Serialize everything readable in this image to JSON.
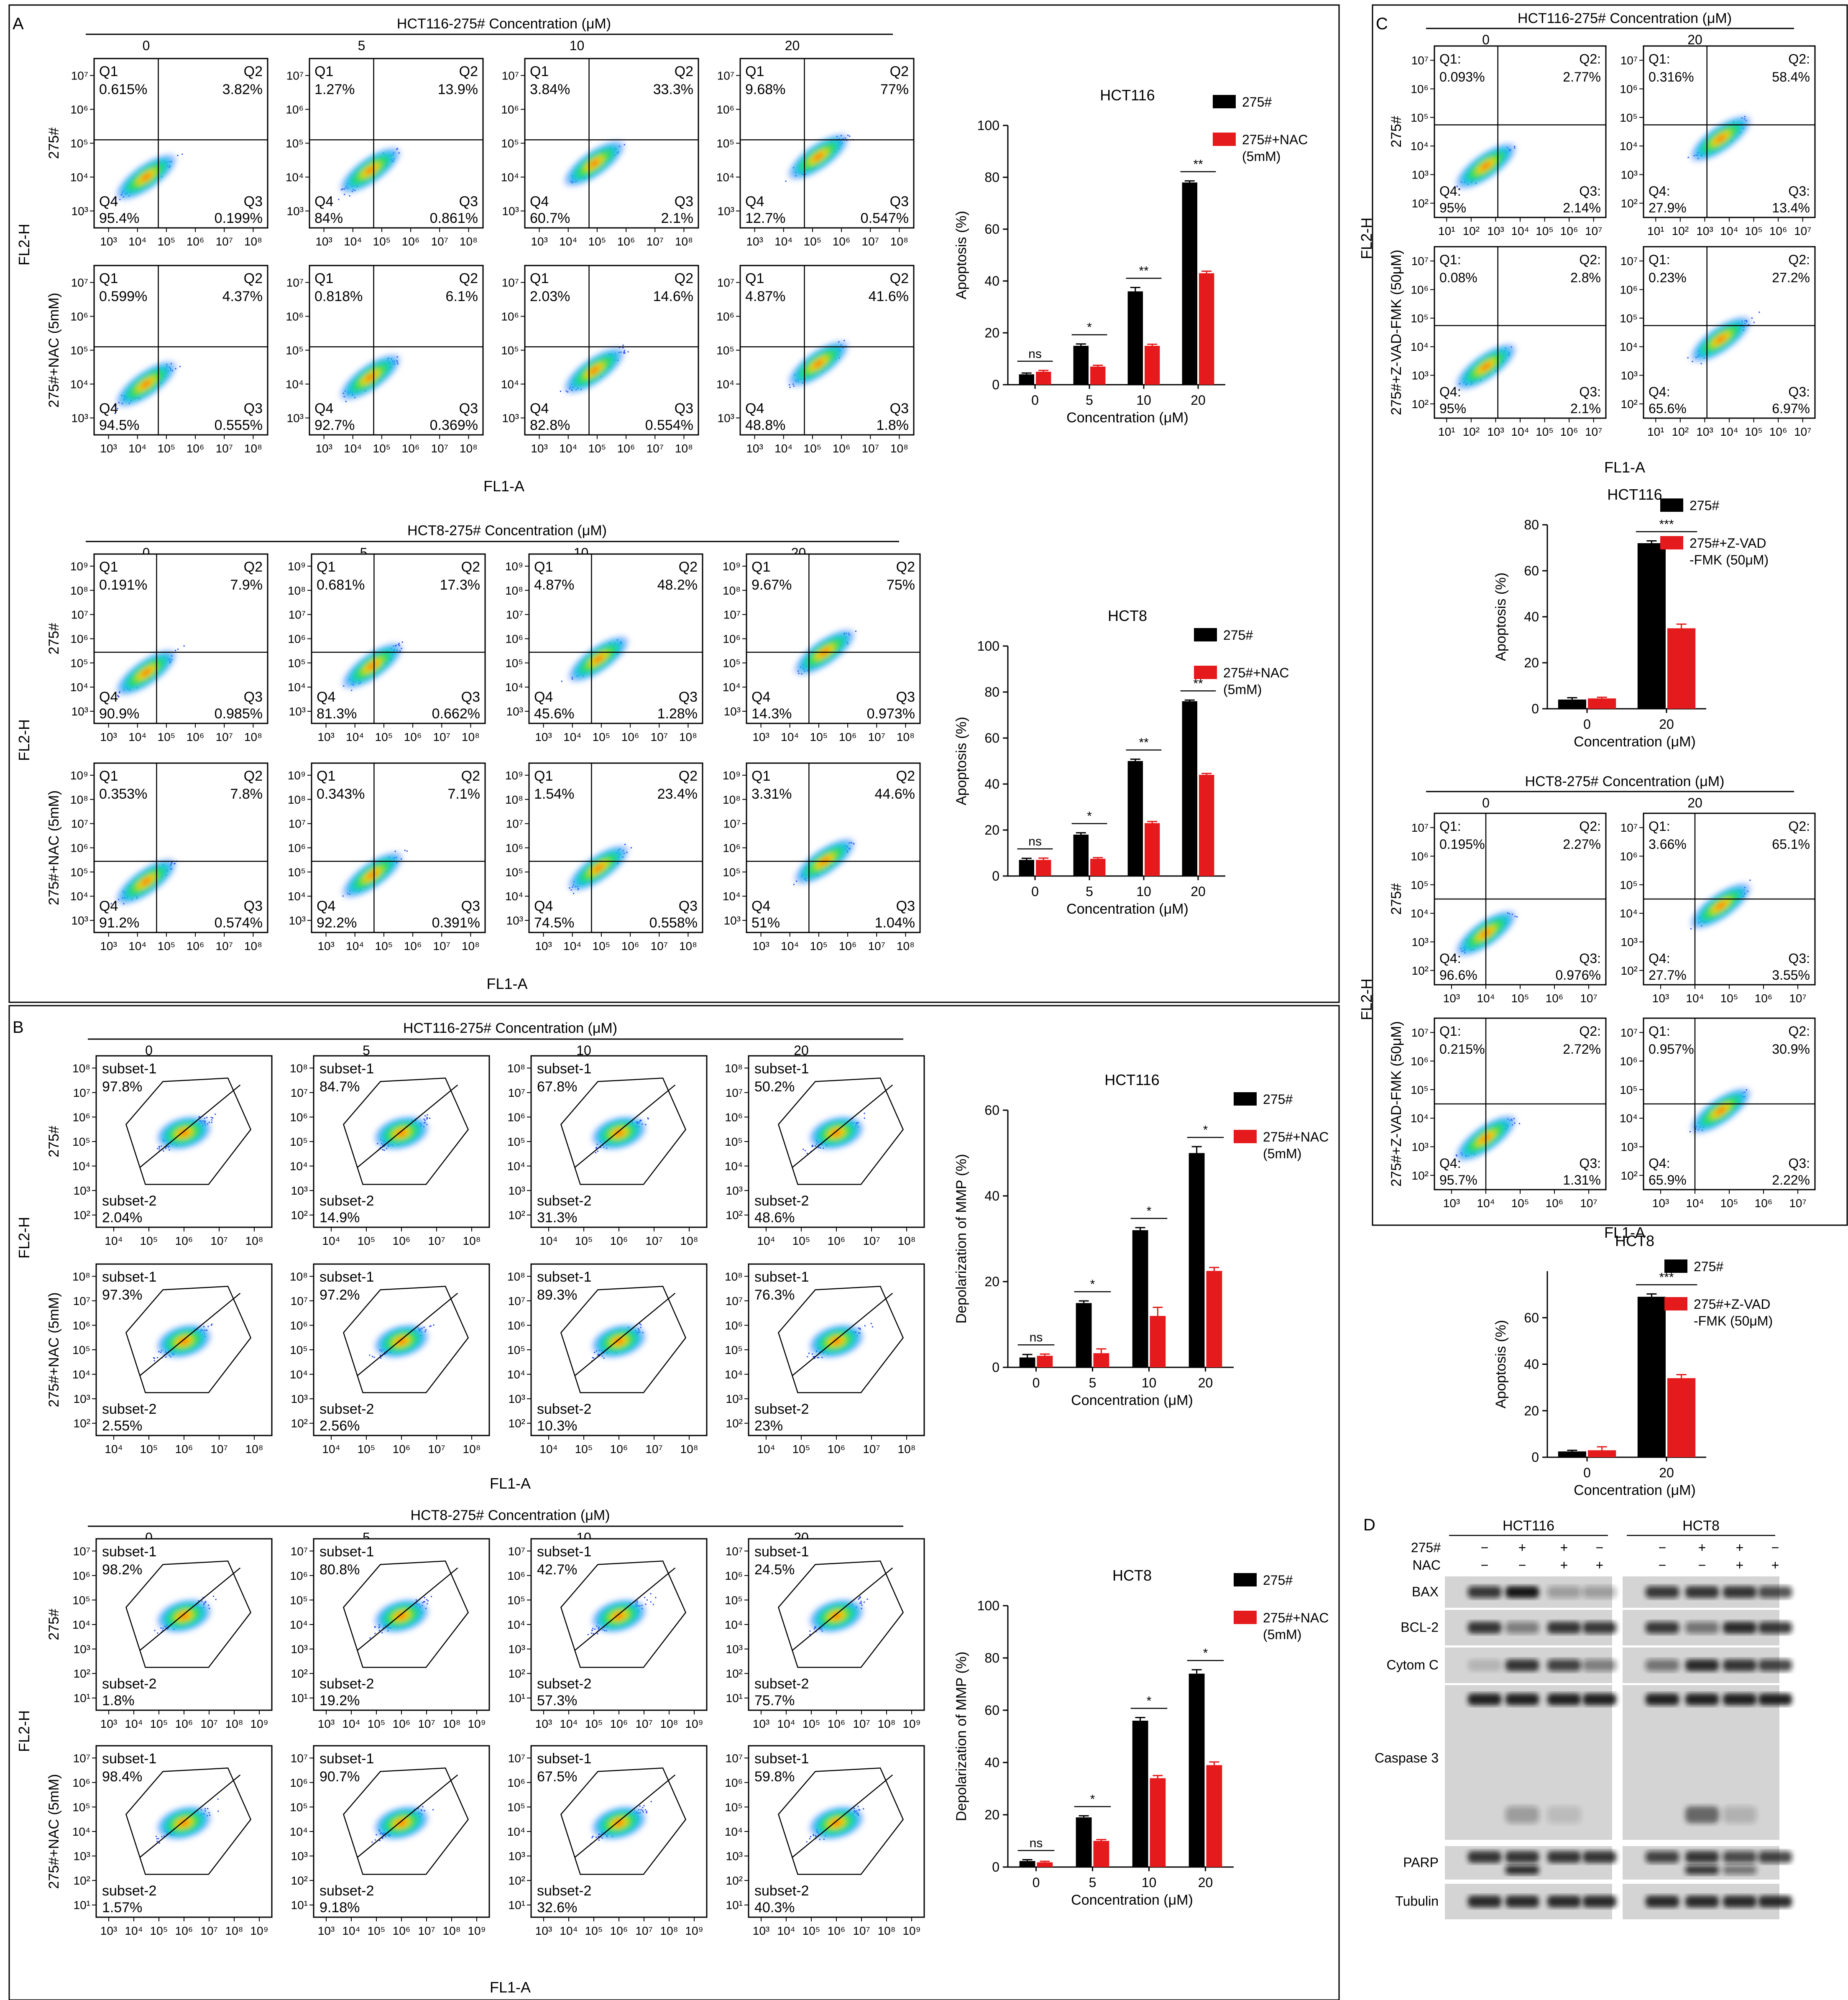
{
  "panel_letters": [
    "A",
    "B",
    "C",
    "D"
  ],
  "flow_cytometry": {
    "apoptosis_quadrant_labels": [
      "Q1",
      "Q2",
      "Q3",
      "Q4"
    ],
    "ros_quadrant_labels": [
      "Q1:",
      "Q2:",
      "Q3:",
      "Q4:"
    ],
    "mmp_gate_labels": [
      "subset-1",
      "subset-2"
    ],
    "x_label": "FL1-A",
    "y_label": "FL2-H",
    "row_labels_nac": [
      "275#",
      "275#+NAC (5mM)"
    ],
    "row_labels_zvad": [
      "275#",
      "275#+Z-VAD-FMK (50μM)"
    ],
    "grids": [
      {
        "title": "HCT116-275# Concentration (μM)",
        "columns": [
          "0",
          "5",
          "10",
          "20"
        ],
        "x_ticks": [
          "10³",
          "10⁴",
          "10⁵",
          "10⁶",
          "10⁷",
          "10⁸"
        ],
        "y_ticks": [
          "10³",
          "10⁴",
          "10⁵",
          "10⁶",
          "10⁷"
        ],
        "rows": [
          [
            [
              "0.615%",
              "3.82%",
              "0.199%",
              "95.4%"
            ],
            [
              "1.27%",
              "13.9%",
              "0.861%",
              "84%"
            ],
            [
              "3.84%",
              "33.3%",
              "2.1%",
              "60.7%"
            ],
            [
              "9.68%",
              "77%",
              "0.547%",
              "12.7%"
            ]
          ],
          [
            [
              "0.599%",
              "4.37%",
              "0.555%",
              "94.5%"
            ],
            [
              "0.818%",
              "6.1%",
              "0.369%",
              "92.7%"
            ],
            [
              "2.03%",
              "14.6%",
              "0.554%",
              "82.8%"
            ],
            [
              "4.87%",
              "41.6%",
              "1.8%",
              "48.8%"
            ]
          ]
        ]
      },
      {
        "title": "HCT8-275# Concentration (μM)",
        "columns": [
          "0",
          "5",
          "10",
          "20"
        ],
        "x_ticks": [
          "10³",
          "10⁴",
          "10⁵",
          "10⁶",
          "10⁷",
          "10⁸"
        ],
        "y_ticks": [
          "10³",
          "10⁴",
          "10⁵",
          "10⁶",
          "10⁷",
          "10⁸",
          "10⁹"
        ],
        "rows": [
          [
            [
              "0.191%",
              "7.9%",
              "0.985%",
              "90.9%"
            ],
            [
              "0.681%",
              "17.3%",
              "0.662%",
              "81.3%"
            ],
            [
              "4.87%",
              "48.2%",
              "1.28%",
              "45.6%"
            ],
            [
              "9.67%",
              "75%",
              "0.973%",
              "14.3%"
            ]
          ],
          [
            [
              "0.353%",
              "7.8%",
              "0.574%",
              "91.2%"
            ],
            [
              "0.343%",
              "7.1%",
              "0.391%",
              "92.2%"
            ],
            [
              "1.54%",
              "23.4%",
              "0.558%",
              "74.5%"
            ],
            [
              "3.31%",
              "44.6%",
              "1.04%",
              "51%"
            ]
          ]
        ]
      },
      {
        "title": "HCT116-275# Concentration (μM)",
        "columns": [
          "0",
          "5",
          "10",
          "20"
        ],
        "x_ticks": [
          "10⁴",
          "10⁵",
          "10⁶",
          "10⁷",
          "10⁸"
        ],
        "y_ticks": [
          "10²",
          "10³",
          "10⁴",
          "10⁵",
          "10⁶",
          "10⁷",
          "10⁸"
        ],
        "rows": [
          [
            [
              "97.8%",
              "2.04%"
            ],
            [
              "84.7%",
              "14.9%"
            ],
            [
              "67.8%",
              "31.3%"
            ],
            [
              "50.2%",
              "48.6%"
            ]
          ],
          [
            [
              "97.3%",
              "2.55%"
            ],
            [
              "97.2%",
              "2.56%"
            ],
            [
              "89.3%",
              "10.3%"
            ],
            [
              "76.3%",
              "23%"
            ]
          ]
        ]
      },
      {
        "title": "HCT8-275# Concentration (μM)",
        "columns": [
          "0",
          "5",
          "10",
          "20"
        ],
        "x_ticks": [
          "10³",
          "10⁴",
          "10⁵",
          "10⁶",
          "10⁷",
          "10⁸",
          "10⁹"
        ],
        "y_ticks": [
          "10¹",
          "10²",
          "10³",
          "10⁴",
          "10⁵",
          "10⁶",
          "10⁷"
        ],
        "rows": [
          [
            [
              "98.2%",
              "1.8%"
            ],
            [
              "80.8%",
              "19.2%"
            ],
            [
              "42.7%",
              "57.3%"
            ],
            [
              "24.5%",
              "75.7%"
            ]
          ],
          [
            [
              "98.4%",
              "1.57%"
            ],
            [
              "90.7%",
              "9.18%"
            ],
            [
              "67.5%",
              "32.6%"
            ],
            [
              "59.8%",
              "40.3%"
            ]
          ]
        ]
      },
      {
        "title": "HCT116-275# Concentration (μM)",
        "columns": [
          "0",
          "20"
        ],
        "x_ticks": [
          "10¹",
          "10²",
          "10³",
          "10⁴",
          "10⁵",
          "10⁶",
          "10⁷"
        ],
        "y_ticks": [
          "10²",
          "10³",
          "10⁴",
          "10⁵",
          "10⁶",
          "10⁷"
        ],
        "rows": [
          [
            [
              "0.093%",
              "2.77%",
              "2.14%",
              "95%"
            ],
            [
              "0.316%",
              "58.4%",
              "13.4%",
              "27.9%"
            ]
          ],
          [
            [
              "0.08%",
              "2.8%",
              "2.1%",
              "95%"
            ],
            [
              "0.23%",
              "27.2%",
              "6.97%",
              "65.6%"
            ]
          ]
        ]
      },
      {
        "title": "HCT8-275# Concentration (μM)",
        "columns": [
          "0",
          "20"
        ],
        "x_ticks": [
          "10³",
          "10⁴",
          "10⁵",
          "10⁶",
          "10⁷"
        ],
        "y_ticks": [
          "10²",
          "10³",
          "10⁴",
          "10⁵",
          "10⁶",
          "10⁷"
        ],
        "rows": [
          [
            [
              "0.195%",
              "2.27%",
              "0.976%",
              "96.6%"
            ],
            [
              "3.66%",
              "65.1%",
              "3.55%",
              "27.7%"
            ]
          ],
          [
            [
              "0.215%",
              "2.72%",
              "1.31%",
              "95.7%"
            ],
            [
              "0.957%",
              "30.9%",
              "2.22%",
              "65.9%"
            ]
          ]
        ]
      }
    ]
  },
  "chart_data": [
    {
      "type": "bar",
      "title": "HCT116",
      "xlabel": "Concentration (μM)",
      "ylabel": "Apoptosis (%)",
      "categories": [
        "0",
        "5",
        "10",
        "20"
      ],
      "ylim": [
        0,
        100
      ],
      "y_ticks": [
        0,
        20,
        40,
        60,
        80,
        100
      ],
      "series": [
        {
          "name": "275#",
          "color": "#000000",
          "values": [
            4,
            15,
            36,
            78
          ],
          "errors": [
            0.5,
            0.7,
            1.5,
            0.6
          ]
        },
        {
          "name": "275#+NAC (5mM)",
          "color": "#e41a1c",
          "values": [
            5,
            7,
            15,
            43
          ],
          "errors": [
            0.5,
            0.5,
            0.6,
            0.8
          ]
        }
      ],
      "significance": [
        "ns",
        "*",
        "**",
        "**"
      ]
    },
    {
      "type": "bar",
      "title": "HCT8",
      "xlabel": "Concentration (μM)",
      "ylabel": "Apoptosis (%)",
      "categories": [
        "0",
        "5",
        "10",
        "20"
      ],
      "ylim": [
        0,
        100
      ],
      "y_ticks": [
        0,
        20,
        40,
        60,
        80,
        100
      ],
      "series": [
        {
          "name": "275#",
          "color": "#000000",
          "values": [
            7,
            18,
            50,
            76
          ],
          "errors": [
            0.7,
            0.8,
            0.8,
            0.5
          ]
        },
        {
          "name": "275#+NAC (5mM)",
          "color": "#e41a1c",
          "values": [
            7,
            7.5,
            23,
            44
          ],
          "errors": [
            0.8,
            0.5,
            0.7,
            0.6
          ]
        }
      ],
      "significance": [
        "ns",
        "*",
        "**",
        "**"
      ]
    },
    {
      "type": "bar",
      "title": "HCT116",
      "xlabel": "Concentration (μM)",
      "ylabel": "Depolarization of MMP (%)",
      "categories": [
        "0",
        "5",
        "10",
        "20"
      ],
      "ylim": [
        0,
        60
      ],
      "y_ticks": [
        0,
        20,
        40,
        60
      ],
      "series": [
        {
          "name": "275#",
          "color": "#000000",
          "values": [
            2.3,
            15,
            32,
            50
          ],
          "errors": [
            0.7,
            0.5,
            0.6,
            1.5
          ]
        },
        {
          "name": "275#+NAC (5mM)",
          "color": "#e41a1c",
          "values": [
            2.7,
            3.3,
            12,
            22.5
          ],
          "errors": [
            0.4,
            1.0,
            2.0,
            0.8
          ]
        }
      ],
      "significance": [
        "ns",
        "*",
        "*",
        "*"
      ]
    },
    {
      "type": "bar",
      "title": "HCT8",
      "xlabel": "Concentration (μM)",
      "ylabel": "Depolarization of MMP (%)",
      "categories": [
        "0",
        "5",
        "10",
        "20"
      ],
      "ylim": [
        0,
        100
      ],
      "y_ticks": [
        0,
        20,
        40,
        60,
        80,
        100
      ],
      "series": [
        {
          "name": "275#",
          "color": "#000000",
          "values": [
            2.3,
            19,
            56,
            74
          ],
          "errors": [
            0.5,
            0.6,
            1.2,
            1.5
          ]
        },
        {
          "name": "275#+NAC (5mM)",
          "color": "#e41a1c",
          "values": [
            1.8,
            10,
            34,
            39
          ],
          "errors": [
            0.4,
            0.5,
            1.0,
            1.2
          ]
        }
      ],
      "significance": [
        "ns",
        "*",
        "*",
        "*"
      ]
    },
    {
      "type": "bar",
      "title": "HCT116",
      "xlabel": "Concentration (μM)",
      "ylabel": "Apoptosis (%)",
      "categories": [
        "0",
        "20"
      ],
      "ylim": [
        0,
        80
      ],
      "y_ticks": [
        0,
        20,
        40,
        60,
        80
      ],
      "series": [
        {
          "name": "275#",
          "color": "#000000",
          "values": [
            4,
            72
          ],
          "errors": [
            0.8,
            1.0
          ]
        },
        {
          "name": "275#+Z-VAD -FMK (50μM)",
          "color": "#e41a1c",
          "values": [
            4.5,
            35
          ],
          "errors": [
            0.5,
            1.8
          ]
        }
      ],
      "significance": [
        "***"
      ]
    },
    {
      "type": "bar",
      "title": "HCT8",
      "xlabel": "Concentration (μM)",
      "ylabel": "Apoptosis (%)",
      "categories": [
        "0",
        "20"
      ],
      "ylim": [
        0,
        80
      ],
      "y_ticks": [
        0,
        20,
        40,
        60
      ],
      "series": [
        {
          "name": "275#",
          "color": "#000000",
          "values": [
            2.5,
            69
          ],
          "errors": [
            0.5,
            1.2
          ]
        },
        {
          "name": "275#+Z-VAD -FMK (50μM)",
          "color": "#e41a1c",
          "values": [
            3,
            34
          ],
          "errors": [
            1.5,
            1.5
          ]
        }
      ],
      "significance": [
        "***"
      ]
    }
  ],
  "western_blot": {
    "cell_lines": [
      "HCT116",
      "HCT8"
    ],
    "treatment_rows": [
      {
        "label": "275#",
        "signs": [
          "−",
          "+",
          "+",
          "−"
        ]
      },
      {
        "label": "NAC",
        "signs": [
          "−",
          "−",
          "+",
          "+"
        ]
      }
    ],
    "proteins": [
      "BAX",
      "BCL-2",
      "Cytom C",
      "Caspase 3",
      "PARP",
      "Tubulin"
    ],
    "band_intensity": {
      "BAX": [
        [
          0.8,
          1.0,
          0.3,
          0.3
        ],
        [
          0.8,
          0.85,
          0.85,
          0.7
        ]
      ],
      "BCL-2": [
        [
          0.85,
          0.45,
          0.85,
          0.8
        ],
        [
          0.8,
          0.5,
          0.9,
          0.8
        ]
      ],
      "Cytom C": [
        [
          0.15,
          0.85,
          0.75,
          0.45
        ],
        [
          0.5,
          0.9,
          0.85,
          0.75
        ]
      ],
      "Caspase 3": [
        [
          0.95,
          0.95,
          0.95,
          0.95
        ],
        [
          0.95,
          0.95,
          0.95,
          0.95
        ]
      ],
      "Caspase 3 cleaved": [
        [
          0,
          0.3,
          0.15,
          0
        ],
        [
          0,
          0.6,
          0.2,
          0
        ]
      ],
      "PARP": [
        [
          0.85,
          0.85,
          0.85,
          0.85
        ],
        [
          0.75,
          0.85,
          0.7,
          0.75
        ]
      ],
      "PARP cleaved": [
        [
          0,
          0.85,
          0,
          0
        ],
        [
          0,
          0.8,
          0.5,
          0
        ]
      ],
      "Tubulin": [
        [
          0.9,
          0.9,
          0.9,
          0.9
        ],
        [
          0.9,
          0.9,
          0.9,
          0.9
        ]
      ]
    }
  },
  "colors": {
    "control": "#000000",
    "treatment": "#e41a1c"
  }
}
